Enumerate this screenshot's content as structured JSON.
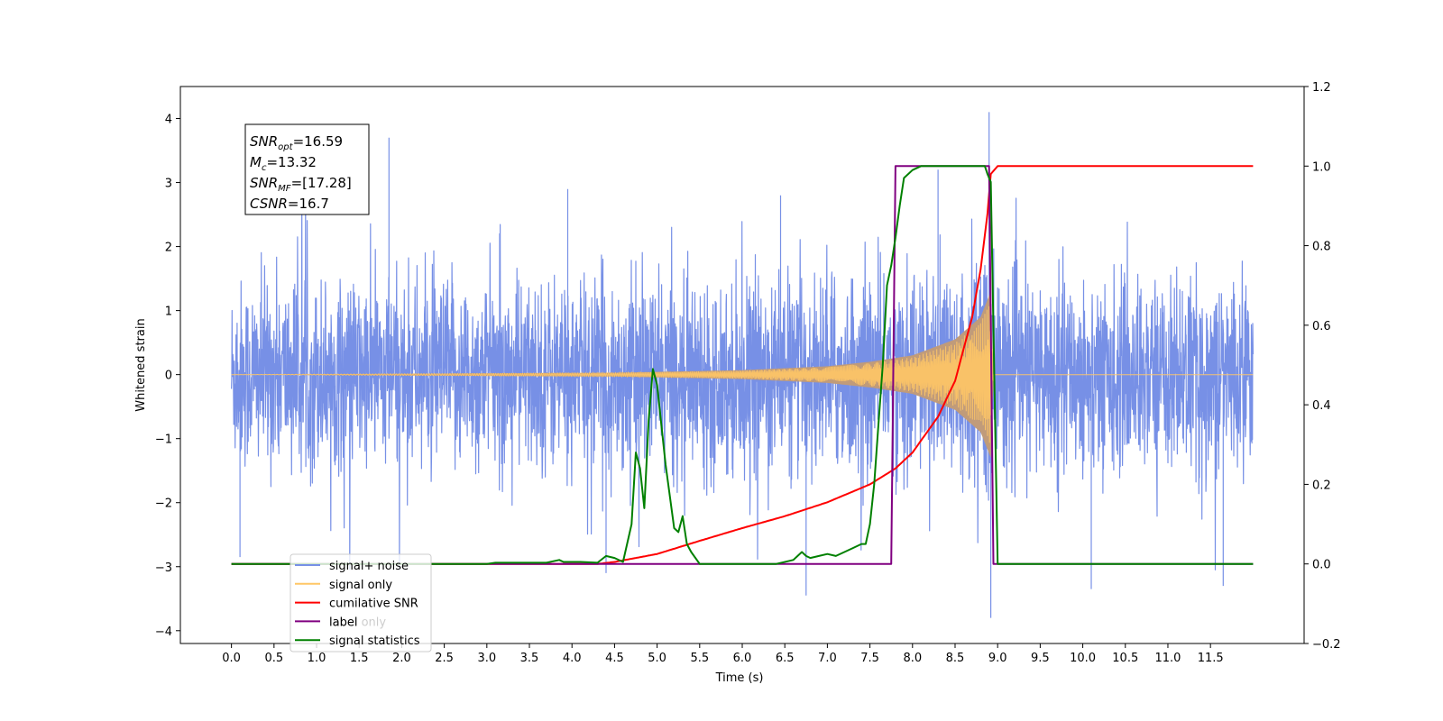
{
  "chart_data": {
    "type": "line",
    "xlabel": "Time (s)",
    "ylabel": "Whitened strain",
    "xlim": [
      -0.6,
      12.6
    ],
    "ylim": [
      -4.2,
      4.5
    ],
    "y2lim": [
      -0.2,
      1.2
    ],
    "x_ticks": [
      "0.0",
      "0.5",
      "1.0",
      "1.5",
      "2.0",
      "2.5",
      "3.0",
      "3.5",
      "4.0",
      "4.5",
      "5.0",
      "5.5",
      "6.0",
      "6.5",
      "7.0",
      "7.5",
      "8.0",
      "8.5",
      "9.0",
      "9.5",
      "10.0",
      "10.5",
      "11.0",
      "11.5"
    ],
    "y_ticks": [
      "−4",
      "−3",
      "−2",
      "−1",
      "0",
      "1",
      "2",
      "3",
      "4"
    ],
    "y2_ticks": [
      "−0.2",
      "0.0",
      "0.2",
      "0.4",
      "0.6",
      "0.8",
      "1.0",
      "1.2"
    ],
    "grid": false,
    "legend_position": "lower-left",
    "annotation": {
      "lines": [
        {
          "main": "SNR",
          "sub": "opt",
          "value": "=16.59"
        },
        {
          "main": "M",
          "sub": "c",
          "value": "=13.32"
        },
        {
          "main": "SNR",
          "sub": "MF",
          "value": "=[17.28]"
        },
        {
          "main": "CSNR",
          "sub": "",
          "value": "=16.7"
        }
      ]
    },
    "series": [
      {
        "name": "signal+ noise",
        "axis": "left",
        "color": "#7790e6",
        "noise_std": 0.72,
        "envelope": {
          "t": [
            0,
            4.5,
            6,
            7,
            7.5,
            8,
            8.5,
            8.8,
            8.92,
            8.95,
            12
          ],
          "a": [
            0,
            0.03,
            0.07,
            0.13,
            0.2,
            0.3,
            0.55,
            0.9,
            1.3,
            0,
            0
          ]
        },
        "spikes": [
          [
            0.1,
            -2.85
          ],
          [
            1.85,
            3.7
          ],
          [
            3.95,
            2.9
          ],
          [
            4.4,
            -3.1
          ],
          [
            6.45,
            2.8
          ],
          [
            6.75,
            -3.45
          ],
          [
            8.3,
            3.2
          ],
          [
            8.9,
            4.1
          ],
          [
            8.92,
            -3.8
          ],
          [
            8.9,
            3.5
          ],
          [
            10.1,
            -3.35
          ],
          [
            11.65,
            -3.3
          ]
        ]
      },
      {
        "name": "signal only",
        "axis": "left",
        "color": "#ffc766",
        "fill_color": "#c09b7a",
        "envelope": {
          "t": [
            0,
            4.5,
            6,
            7,
            7.5,
            8,
            8.5,
            8.8,
            8.92,
            8.95,
            12
          ],
          "a": [
            0,
            0.03,
            0.07,
            0.13,
            0.2,
            0.3,
            0.55,
            0.9,
            1.3,
            0,
            0
          ]
        }
      },
      {
        "name": "cumilative SNR",
        "axis": "right",
        "color": "#ff0000",
        "x": [
          0,
          4.3,
          4.5,
          5,
          5.5,
          6,
          6.5,
          7,
          7.5,
          7.8,
          8,
          8.3,
          8.5,
          8.7,
          8.8,
          8.88,
          8.92,
          9.0,
          12.0
        ],
        "y": [
          0,
          0,
          0.005,
          0.025,
          0.058,
          0.09,
          0.12,
          0.155,
          0.2,
          0.24,
          0.28,
          0.37,
          0.46,
          0.62,
          0.74,
          0.88,
          0.98,
          1.0,
          1.0
        ]
      },
      {
        "name": "label",
        "axis": "right",
        "color": "#800080",
        "x": [
          0,
          7.75,
          7.8,
          8.9,
          8.95,
          12.0
        ],
        "y": [
          0,
          0,
          1.0,
          1.0,
          0,
          0
        ]
      },
      {
        "name": "signal statistics",
        "axis": "right",
        "color": "#008000",
        "x": [
          0,
          3.0,
          3.1,
          3.7,
          3.85,
          3.9,
          4.1,
          4.3,
          4.4,
          4.5,
          4.6,
          4.7,
          4.75,
          4.8,
          4.85,
          4.9,
          4.95,
          5.0,
          5.1,
          5.2,
          5.25,
          5.3,
          5.35,
          5.4,
          5.5,
          5.6,
          6.0,
          6.4,
          6.6,
          6.7,
          6.75,
          6.8,
          6.9,
          7.0,
          7.1,
          7.2,
          7.3,
          7.4,
          7.45,
          7.5,
          7.55,
          7.6,
          7.65,
          7.7,
          7.75,
          7.8,
          7.85,
          7.9,
          8.0,
          8.1,
          8.2,
          8.5,
          8.85,
          8.88,
          8.92,
          9.0,
          12.0
        ],
        "y": [
          0,
          0,
          0.003,
          0.003,
          0.01,
          0.005,
          0.005,
          0.003,
          0.02,
          0.015,
          0.005,
          0.1,
          0.28,
          0.24,
          0.14,
          0.36,
          0.49,
          0.45,
          0.25,
          0.09,
          0.08,
          0.12,
          0.05,
          0.03,
          0.0,
          0.0,
          0.0,
          0.0,
          0.01,
          0.03,
          0.02,
          0.015,
          0.02,
          0.025,
          0.02,
          0.03,
          0.04,
          0.05,
          0.05,
          0.1,
          0.2,
          0.35,
          0.5,
          0.7,
          0.75,
          0.82,
          0.9,
          0.97,
          0.99,
          1.0,
          1.0,
          1.0,
          1.0,
          0.98,
          0.96,
          0.0,
          0.0
        ]
      }
    ],
    "legend": [
      {
        "label": "signal+ noise",
        "color": "#7790e6"
      },
      {
        "label": "signal only",
        "color": "#ffc766"
      },
      {
        "label": "cumilative SNR",
        "color": "#ff0000"
      },
      {
        "label": "label",
        "color": "#800080"
      },
      {
        "label": "signal statistics",
        "color": "#008000"
      }
    ],
    "legend_ghost_labels": [
      "signal only",
      "label only"
    ]
  }
}
